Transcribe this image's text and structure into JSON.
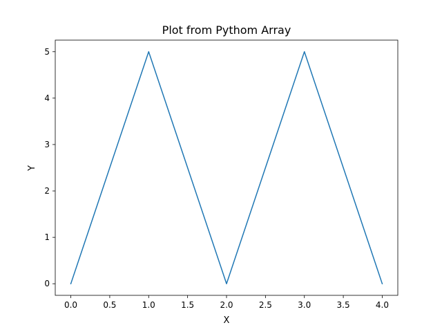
{
  "chart_data": {
    "type": "line",
    "title": "Plot from Pythom Array",
    "xlabel": "X",
    "ylabel": "Y",
    "xlim": [
      -0.2,
      4.2
    ],
    "ylim": [
      -0.25,
      5.25
    ],
    "x_ticks": [
      0.0,
      0.5,
      1.0,
      1.5,
      2.0,
      2.5,
      3.0,
      3.5,
      4.0
    ],
    "x_tick_labels": [
      "0.0",
      "0.5",
      "1.0",
      "1.5",
      "2.0",
      "2.5",
      "3.0",
      "3.5",
      "4.0"
    ],
    "y_ticks": [
      0,
      1,
      2,
      3,
      4,
      5
    ],
    "y_tick_labels": [
      "0",
      "1",
      "2",
      "3",
      "4",
      "5"
    ],
    "grid": false,
    "legend": false,
    "series": [
      {
        "color": "#1f77b4",
        "x": [
          0,
          1,
          2,
          3,
          4
        ],
        "y": [
          0,
          5,
          0,
          5,
          0
        ]
      }
    ]
  }
}
